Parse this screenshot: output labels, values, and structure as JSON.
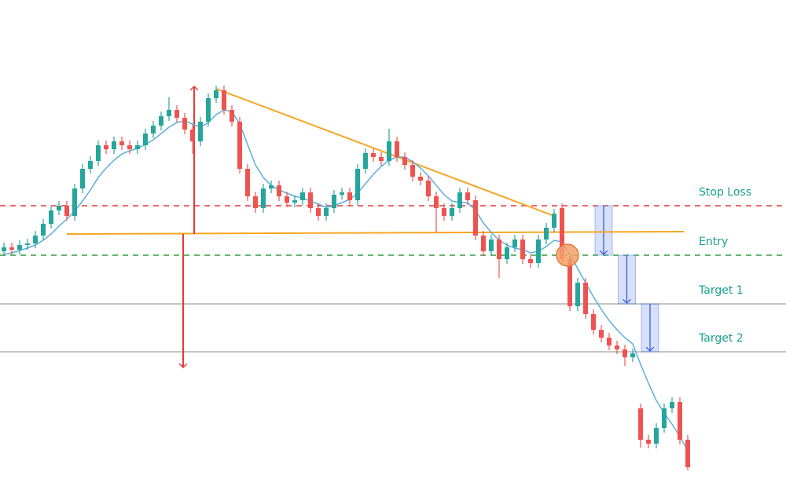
{
  "chart_data": {
    "type": "candlestick",
    "ylim": [
      0,
      624
    ],
    "up_color": "#26a69a",
    "down_color": "#ef5350",
    "open": [
      304,
      309,
      306,
      312,
      314,
      324,
      339,
      356,
      362,
      349,
      384,
      409,
      419,
      439,
      434,
      444,
      439,
      434,
      439,
      454,
      464,
      476,
      484,
      474,
      459,
      444,
      469,
      499,
      509,
      484,
      469,
      409,
      374,
      359,
      384,
      388,
      374,
      366,
      369,
      379,
      359,
      349,
      359,
      376,
      379,
      369,
      409,
      429,
      424,
      419,
      444,
      424,
      414,
      399,
      394,
      374,
      359,
      349,
      359,
      379,
      369,
      324,
      304,
      319,
      294,
      309,
      319,
      294,
      289,
      319,
      334,
      359,
      294,
      234,
      264,
      224,
      204,
      194,
      184,
      179,
      169,
      104,
      64,
      59,
      79,
      104,
      112,
      64
    ],
    "high": [
      315,
      315,
      318,
      320,
      330,
      345,
      362,
      368,
      368,
      390,
      415,
      425,
      445,
      445,
      450,
      450,
      445,
      445,
      460,
      470,
      482,
      500,
      490,
      480,
      465,
      475,
      505,
      515,
      515,
      490,
      475,
      415,
      380,
      390,
      394,
      394,
      380,
      375,
      385,
      385,
      365,
      365,
      382,
      385,
      385,
      415,
      435,
      435,
      430,
      460,
      450,
      430,
      420,
      405,
      400,
      380,
      365,
      365,
      385,
      385,
      375,
      330,
      325,
      325,
      315,
      325,
      325,
      300,
      325,
      340,
      358,
      365,
      300,
      270,
      270,
      230,
      210,
      200,
      190,
      185,
      180,
      110,
      70,
      85,
      110,
      118,
      118,
      70
    ],
    "low": [
      298,
      300,
      300,
      306,
      308,
      318,
      333,
      350,
      343,
      343,
      378,
      403,
      413,
      428,
      428,
      433,
      428,
      428,
      433,
      448,
      458,
      470,
      468,
      453,
      428,
      438,
      463,
      493,
      478,
      463,
      403,
      368,
      353,
      353,
      378,
      368,
      360,
      360,
      363,
      353,
      343,
      343,
      353,
      370,
      363,
      363,
      403,
      418,
      413,
      413,
      418,
      408,
      393,
      388,
      368,
      328,
      343,
      343,
      353,
      363,
      318,
      298,
      298,
      270,
      288,
      303,
      288,
      283,
      283,
      313,
      328,
      288,
      228,
      228,
      218,
      198,
      188,
      178,
      173,
      158,
      163,
      54,
      53,
      53,
      73,
      98,
      58,
      25
    ],
    "close": [
      309,
      306,
      312,
      314,
      324,
      339,
      356,
      362,
      349,
      384,
      409,
      419,
      439,
      434,
      444,
      439,
      434,
      439,
      454,
      464,
      476,
      484,
      474,
      459,
      444,
      469,
      499,
      509,
      484,
      469,
      409,
      374,
      359,
      384,
      388,
      374,
      366,
      369,
      379,
      359,
      349,
      359,
      376,
      379,
      369,
      409,
      429,
      424,
      419,
      444,
      424,
      414,
      399,
      394,
      374,
      359,
      349,
      359,
      379,
      369,
      324,
      304,
      319,
      294,
      309,
      319,
      294,
      289,
      319,
      334,
      352,
      294,
      234,
      264,
      224,
      204,
      194,
      184,
      179,
      169,
      174,
      64,
      59,
      79,
      104,
      112,
      64,
      29
    ],
    "moving_average": {
      "color": "#5aaee0",
      "values": [
        300,
        302,
        305,
        308,
        312,
        318,
        326,
        336,
        345,
        355,
        368,
        382,
        398,
        410,
        420,
        428,
        432,
        435,
        440,
        446,
        454,
        462,
        468,
        470,
        466,
        462,
        468,
        478,
        484,
        482,
        466,
        440,
        414,
        398,
        388,
        382,
        378,
        374,
        372,
        368,
        364,
        360,
        362,
        366,
        370,
        378,
        390,
        402,
        412,
        420,
        424,
        424,
        418,
        410,
        400,
        388,
        376,
        368,
        366,
        366,
        356,
        340,
        328,
        318,
        312,
        308,
        306,
        302,
        304,
        310,
        318,
        316,
        300,
        282,
        264,
        246,
        230,
        216,
        204,
        194,
        186,
        160,
        136,
        114,
        98,
        84,
        68,
        50
      ]
    },
    "trendlines": [
      {
        "color": "#f5a623",
        "start": [
          27,
          511
        ],
        "end": [
          70,
          349
        ]
      },
      {
        "color": "#f5a623",
        "start": [
          8,
          326
        ],
        "end": [
          86.5,
          329
        ]
      }
    ],
    "levels": [
      {
        "label": "Stop Loss",
        "value": 362,
        "color": "#e53935",
        "style": "dashed"
      },
      {
        "label": "Entry",
        "value": 299,
        "color": "#2e9e3e",
        "style": "dashed"
      },
      {
        "label": "Target 1",
        "value": 237,
        "color": "#b0b0b0",
        "style": "solid"
      },
      {
        "label": "Target 2",
        "value": 176,
        "color": "#b0b0b0",
        "style": "solid"
      }
    ],
    "measured_move": {
      "color": "#e53935",
      "arrows": [
        {
          "x": 24.2,
          "from": 326,
          "to": 514
        },
        {
          "x": 22.8,
          "from": 326,
          "to": 156
        }
      ]
    },
    "entry_marker": {
      "x": 71.7,
      "value": 299,
      "color": "#f5a06a"
    }
  }
}
